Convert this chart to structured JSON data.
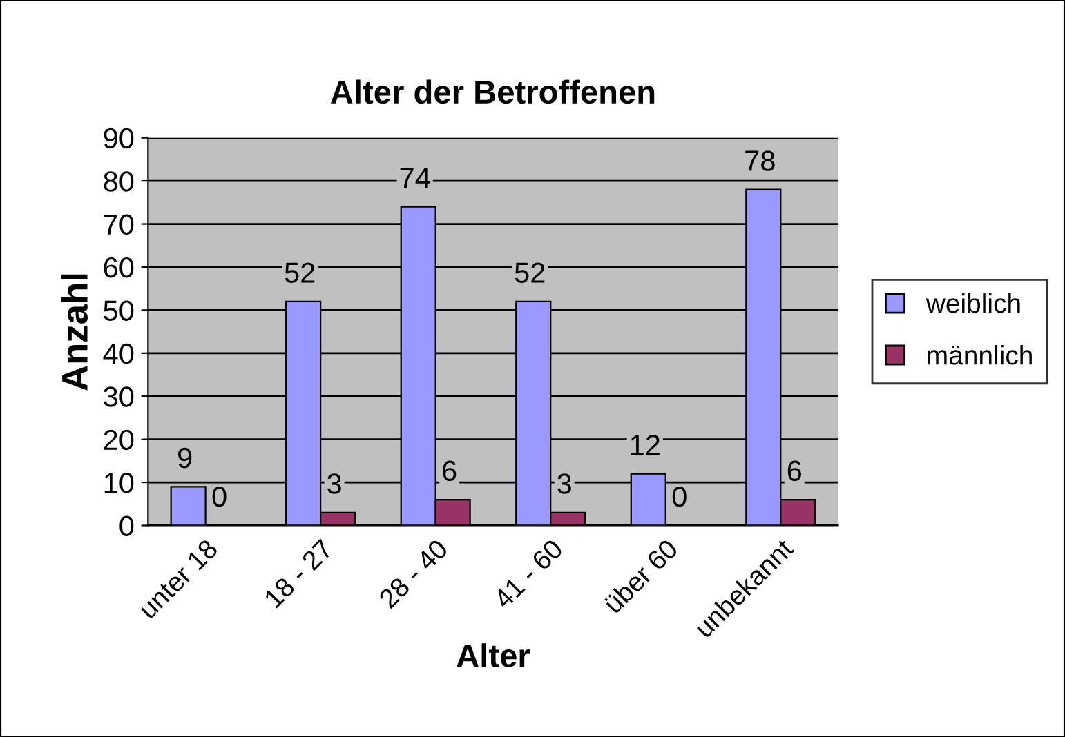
{
  "chart_data": {
    "type": "bar",
    "title": "Alter der Betroffenen",
    "xlabel": "Alter",
    "ylabel": "Anzahl",
    "categories": [
      "unter 18",
      "18 - 27",
      "28 - 40",
      "41 - 60",
      "über 60",
      "unbekannt"
    ],
    "series": [
      {
        "name": "weiblich",
        "color": "#9999ff",
        "values": [
          9,
          52,
          74,
          52,
          12,
          78
        ]
      },
      {
        "name": "männlich",
        "color": "#993366",
        "values": [
          0,
          3,
          6,
          3,
          0,
          6
        ]
      }
    ],
    "ylim": [
      0,
      90
    ],
    "yticks": [
      0,
      10,
      20,
      30,
      40,
      50,
      60,
      70,
      80,
      90
    ],
    "grid": "y",
    "legend": "right",
    "data_labels": true
  }
}
